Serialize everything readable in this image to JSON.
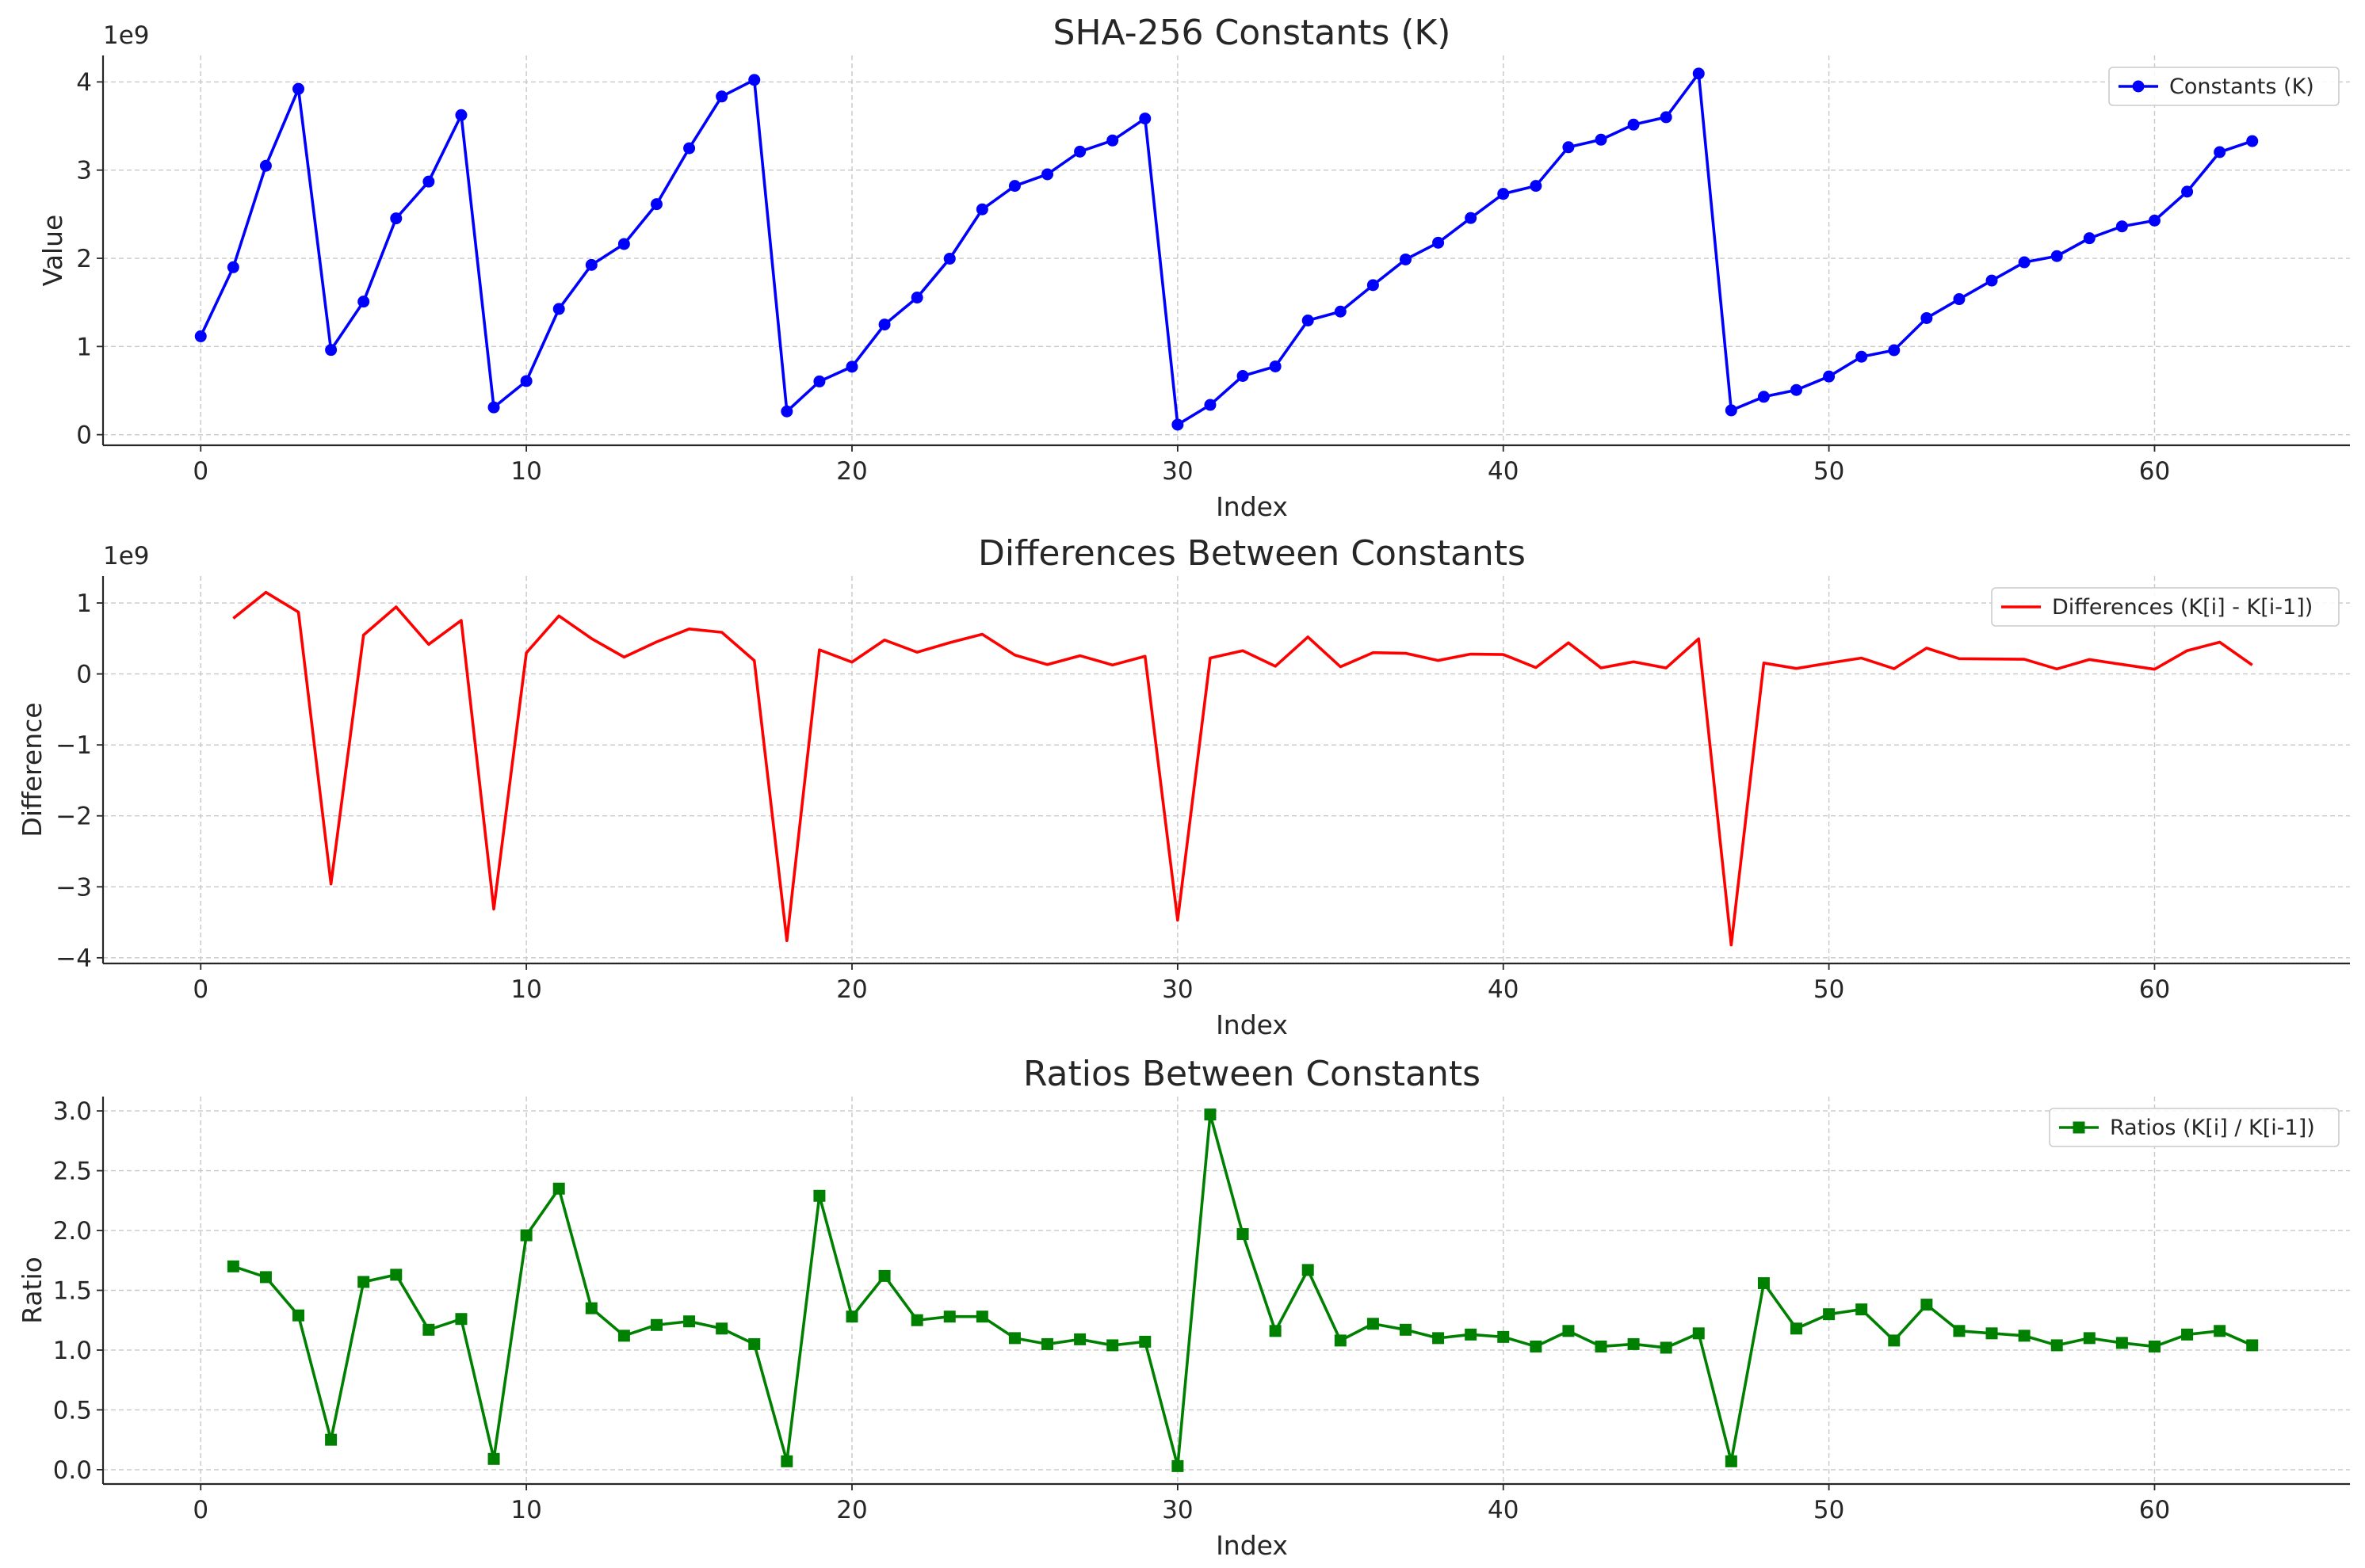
{
  "chart_data": [
    {
      "type": "line",
      "title": "SHA-256 Constants (K)",
      "xlabel": "Index",
      "ylabel": "Value",
      "y_offset_label": "1e9",
      "x": [
        0,
        1,
        2,
        3,
        4,
        5,
        6,
        7,
        8,
        9,
        10,
        11,
        12,
        13,
        14,
        15,
        16,
        17,
        18,
        19,
        20,
        21,
        22,
        23,
        24,
        25,
        26,
        27,
        28,
        29,
        30,
        31,
        32,
        33,
        34,
        35,
        36,
        37,
        38,
        39,
        40,
        41,
        42,
        43,
        44,
        45,
        46,
        47,
        48,
        49,
        50,
        51,
        52,
        53,
        54,
        55,
        56,
        57,
        58,
        59,
        60,
        61,
        62,
        63
      ],
      "series": [
        {
          "name": "Constants (K)",
          "color": "#0000ff",
          "marker": "circle",
          "values": [
            1.116,
            1.899,
            3.049,
            3.921,
            0.961,
            1.509,
            2.453,
            2.87,
            3.624,
            0.31,
            0.608,
            1.426,
            1.925,
            2.162,
            2.614,
            3.248,
            3.835,
            4.023,
            0.264,
            0.604,
            0.771,
            1.249,
            1.555,
            1.996,
            2.555,
            2.821,
            2.953,
            3.21,
            3.336,
            3.585,
            0.114,
            0.338,
            0.666,
            0.774,
            1.295,
            1.396,
            1.696,
            1.987,
            2.177,
            2.457,
            2.731,
            2.821,
            3.26,
            3.345,
            3.516,
            3.6,
            4.095,
            0.276,
            0.43,
            0.507,
            0.66,
            0.884,
            0.958,
            1.322,
            1.537,
            1.748,
            1.955,
            2.025,
            2.228,
            2.362,
            2.428,
            2.756,
            3.204,
            3.329
          ]
        }
      ],
      "xlim": [
        -3,
        66
      ],
      "ylim": [
        -0.12,
        4.3
      ],
      "xticks": [
        0,
        10,
        20,
        30,
        40,
        50,
        60
      ],
      "yticks": [
        0,
        1,
        2,
        3,
        4
      ],
      "grid": true,
      "legend": "upper-right"
    },
    {
      "type": "line",
      "title": "Differences Between Constants",
      "xlabel": "Index",
      "ylabel": "Difference",
      "y_offset_label": "1e9",
      "x": [
        1,
        2,
        3,
        4,
        5,
        6,
        7,
        8,
        9,
        10,
        11,
        12,
        13,
        14,
        15,
        16,
        17,
        18,
        19,
        20,
        21,
        22,
        23,
        24,
        25,
        26,
        27,
        28,
        29,
        30,
        31,
        32,
        33,
        34,
        35,
        36,
        37,
        38,
        39,
        40,
        41,
        42,
        43,
        44,
        45,
        46,
        47,
        48,
        49,
        50,
        51,
        52,
        53,
        54,
        55,
        56,
        57,
        58,
        59,
        60,
        61,
        62,
        63
      ],
      "series": [
        {
          "name": "Differences (K[i] - K[i-1])",
          "color": "#ff0000",
          "marker": "none",
          "values": [
            0.783,
            1.15,
            0.872,
            -2.96,
            0.548,
            0.944,
            0.417,
            0.754,
            -3.314,
            0.298,
            0.818,
            0.499,
            0.237,
            0.452,
            0.634,
            0.587,
            0.188,
            -3.759,
            0.34,
            0.167,
            0.478,
            0.306,
            0.441,
            0.559,
            0.266,
            0.132,
            0.257,
            0.126,
            0.249,
            -3.471,
            0.224,
            0.328,
            0.108,
            0.521,
            0.101,
            0.3,
            0.291,
            0.19,
            0.28,
            0.274,
            0.09,
            0.439,
            0.085,
            0.171,
            0.084,
            0.495,
            -3.819,
            0.154,
            0.077,
            0.153,
            0.224,
            0.074,
            0.364,
            0.215,
            0.211,
            0.207,
            0.07,
            0.203,
            0.134,
            0.066,
            0.328,
            0.448,
            0.125
          ]
        }
      ],
      "xlim": [
        -3,
        66
      ],
      "ylim": [
        -4.08,
        1.38
      ],
      "xticks": [
        0,
        10,
        20,
        30,
        40,
        50,
        60
      ],
      "yticks": [
        -4,
        -3,
        -2,
        -1,
        0,
        1
      ],
      "grid": true,
      "legend": "upper-right"
    },
    {
      "type": "line",
      "title": "Ratios Between Constants",
      "xlabel": "Index",
      "ylabel": "Ratio",
      "x": [
        1,
        2,
        3,
        4,
        5,
        6,
        7,
        8,
        9,
        10,
        11,
        12,
        13,
        14,
        15,
        16,
        17,
        18,
        19,
        20,
        21,
        22,
        23,
        24,
        25,
        26,
        27,
        28,
        29,
        30,
        31,
        32,
        33,
        34,
        35,
        36,
        37,
        38,
        39,
        40,
        41,
        42,
        43,
        44,
        45,
        46,
        47,
        48,
        49,
        50,
        51,
        52,
        53,
        54,
        55,
        56,
        57,
        58,
        59,
        60,
        61,
        62,
        63
      ],
      "series": [
        {
          "name": "Ratios (K[i] / K[i-1])",
          "color": "#008000",
          "marker": "square",
          "values": [
            1.7,
            1.61,
            1.29,
            0.25,
            1.57,
            1.63,
            1.17,
            1.26,
            0.09,
            1.96,
            2.35,
            1.35,
            1.12,
            1.21,
            1.24,
            1.18,
            1.05,
            0.07,
            2.29,
            1.28,
            1.62,
            1.25,
            1.28,
            1.28,
            1.1,
            1.05,
            1.09,
            1.04,
            1.07,
            0.03,
            2.97,
            1.97,
            1.16,
            1.67,
            1.08,
            1.22,
            1.17,
            1.1,
            1.13,
            1.11,
            1.03,
            1.16,
            1.03,
            1.05,
            1.02,
            1.14,
            0.07,
            1.56,
            1.18,
            1.3,
            1.34,
            1.08,
            1.38,
            1.16,
            1.14,
            1.12,
            1.04,
            1.1,
            1.06,
            1.03,
            1.13,
            1.16,
            1.04
          ]
        }
      ],
      "xlim": [
        -3,
        66
      ],
      "ylim": [
        -0.12,
        3.12
      ],
      "xticks": [
        0,
        10,
        20,
        30,
        40,
        50,
        60
      ],
      "yticks": [
        0.0,
        0.5,
        1.0,
        1.5,
        2.0,
        2.5,
        3.0
      ],
      "ytick_decimals": 1,
      "grid": true,
      "legend": "upper-right"
    }
  ]
}
